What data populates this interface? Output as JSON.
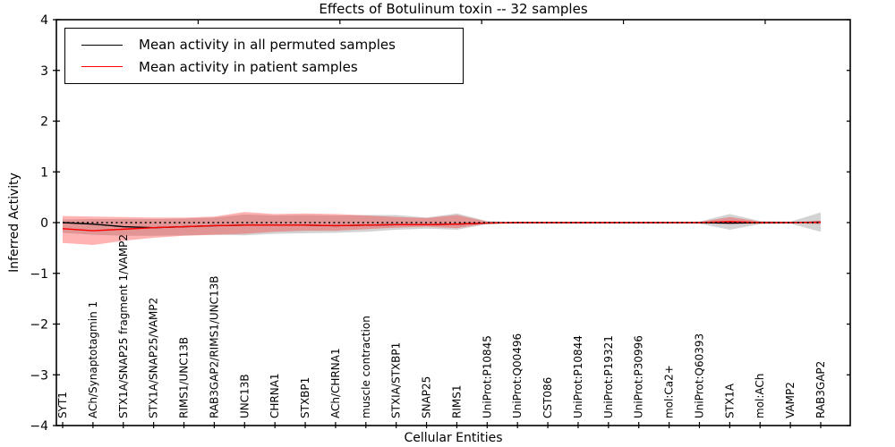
{
  "chart_data": {
    "type": "line",
    "title": "Effects of Botulinum toxin -- 32 samples",
    "xlabel": "Cellular Entities",
    "ylabel": "Inferred Activity",
    "ylim": [
      -4,
      4
    ],
    "yticks": [
      4,
      3,
      2,
      1,
      0,
      -1,
      -2,
      -3,
      -4
    ],
    "grid": false,
    "legend_position": "upper left",
    "categories": [
      "SYT1",
      "ACh/Synaptotagmin 1",
      "STX1A/SNAP25 fragment 1/VAMP2",
      "STX1A/SNAP25/VAMP2",
      "RIMS1/UNC13B",
      "RAB3GAP2/RIMS1/UNC13B",
      "UNC13B",
      "CHRNA1",
      "STXBP1",
      "ACh/CHRNA1",
      "muscle contraction",
      "STXIA/STXBP1",
      "SNAP25",
      "RIMS1",
      "UniProt:P10845",
      "UniProt:Q00496",
      "CST086",
      "UniProt:P10844",
      "UniProt:P19321",
      "UniProt:P30996",
      "mol:Ca2+",
      "UniProt:Q60393",
      "STX1A",
      "mol:ACh",
      "VAMP2",
      "RAB3GAP2"
    ],
    "series": [
      {
        "name": "Mean activity in all permuted samples",
        "color": "#000000",
        "style": "solid",
        "values": [
          0.0,
          -0.03,
          -0.08,
          -0.1,
          -0.08,
          -0.06,
          -0.05,
          -0.05,
          -0.05,
          -0.06,
          -0.05,
          -0.04,
          -0.04,
          -0.03,
          -0.01,
          0.0,
          0.0,
          0.0,
          0.0,
          0.0,
          0.0,
          0.0,
          -0.01,
          0.0,
          0.0,
          0.01
        ]
      },
      {
        "name": "Mean activity in patient samples",
        "color": "#ff0000",
        "style": "solid",
        "values": [
          -0.12,
          -0.16,
          -0.13,
          -0.1,
          -0.08,
          -0.06,
          -0.05,
          -0.05,
          -0.05,
          -0.06,
          -0.05,
          -0.04,
          -0.04,
          -0.03,
          -0.01,
          0.0,
          0.0,
          0.0,
          0.0,
          0.0,
          0.0,
          0.0,
          0.02,
          0.0,
          0.0,
          0.01
        ]
      },
      {
        "name": "zero-reference",
        "color": "#000000",
        "style": "dotted",
        "values": [
          0,
          0,
          0,
          0,
          0,
          0,
          0,
          0,
          0,
          0,
          0,
          0,
          0,
          0,
          0,
          0,
          0,
          0,
          0,
          0,
          0,
          0,
          0,
          0,
          0,
          0
        ]
      }
    ],
    "bands": [
      {
        "name": "permuted-samples-range",
        "color": "rgba(110,110,110,0.30)",
        "upper": [
          0.06,
          0.07,
          0.07,
          0.07,
          0.08,
          0.1,
          0.16,
          0.14,
          0.15,
          0.14,
          0.15,
          0.15,
          0.1,
          0.18,
          0.03,
          0.01,
          0.01,
          0.01,
          0.01,
          0.01,
          0.01,
          0.02,
          0.17,
          0.03,
          0.02,
          0.2
        ],
        "lower": [
          -0.2,
          -0.24,
          -0.26,
          -0.26,
          -0.25,
          -0.24,
          -0.25,
          -0.22,
          -0.21,
          -0.2,
          -0.18,
          -0.14,
          -0.12,
          -0.14,
          -0.03,
          -0.01,
          -0.01,
          -0.01,
          -0.01,
          -0.01,
          -0.01,
          -0.02,
          -0.14,
          -0.03,
          -0.02,
          -0.18
        ]
      },
      {
        "name": "patient-samples-range",
        "color": "rgba(255,20,20,0.32)",
        "upper": [
          0.13,
          0.12,
          0.11,
          0.1,
          0.1,
          0.12,
          0.21,
          0.17,
          0.18,
          0.17,
          0.14,
          0.11,
          0.09,
          0.15,
          0.02,
          0.01,
          0.01,
          0.01,
          0.01,
          0.01,
          0.01,
          0.01,
          0.11,
          0.02,
          0.01,
          0.03
        ],
        "lower": [
          -0.4,
          -0.44,
          -0.36,
          -0.3,
          -0.26,
          -0.24,
          -0.22,
          -0.18,
          -0.16,
          -0.16,
          -0.13,
          -0.1,
          -0.08,
          -0.11,
          -0.02,
          -0.01,
          -0.01,
          -0.01,
          -0.01,
          -0.01,
          -0.01,
          -0.01,
          -0.03,
          -0.02,
          -0.01,
          -0.03
        ]
      }
    ]
  },
  "legend": {
    "items": [
      {
        "label": "Mean activity in all permuted samples",
        "color": "#000000"
      },
      {
        "label": "Mean activity in patient samples",
        "color": "#ff0000"
      }
    ]
  }
}
